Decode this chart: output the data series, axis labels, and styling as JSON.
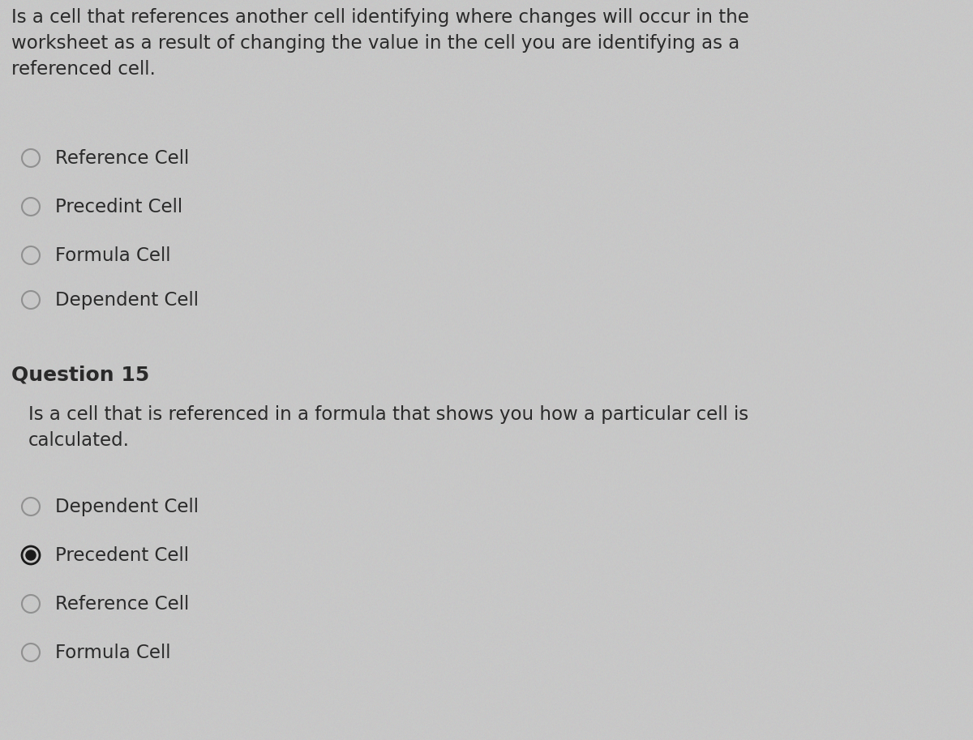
{
  "bg_color": "#c8c8c8",
  "text_color": "#2a2a2a",
  "q14_question": "Is a cell that references another cell identifying where changes will occur in the\nworksheet as a result of changing the value in the cell you are identifying as a\nreferenced cell.",
  "q14_options": [
    "Reference Cell",
    "Precedint Cell",
    "Formula Cell",
    "Dependent Cell"
  ],
  "q14_selected": null,
  "q15_label": "Question 15",
  "q15_question": "Is a cell that is referenced in a formula that shows you how a particular cell is\ncalculated.",
  "q15_options": [
    "Dependent Cell",
    "Precedent Cell",
    "Reference Cell",
    "Formula Cell"
  ],
  "q15_selected": "Precedent Cell",
  "font_size_question": 16.5,
  "font_size_option": 16.5,
  "font_size_label": 18,
  "selected_color": "#1a1a1a",
  "unselected_color": "#909090"
}
